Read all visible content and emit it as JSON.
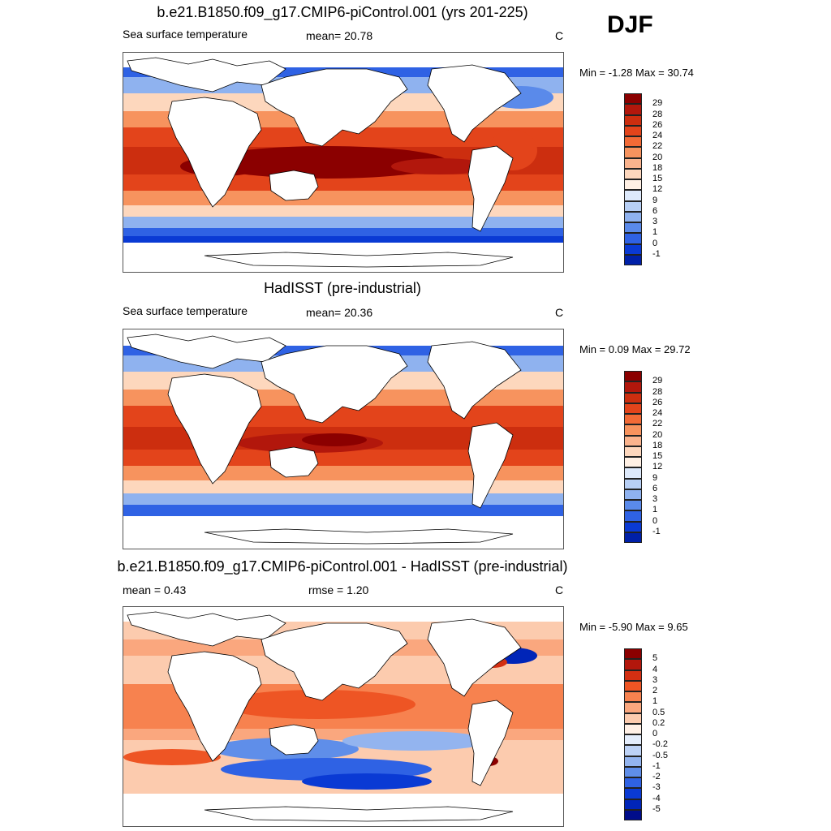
{
  "season": "DJF",
  "panels": [
    {
      "id": "model",
      "title": "b.e21.B1850.f09_g17.CMIP6-piControl.001 (yrs 201-225)",
      "left": "Sea surface temperature",
      "center": "mean=  20.78",
      "unit": "C",
      "minmax": "Min =  -1.28 Max =  30.74"
    },
    {
      "id": "obs",
      "title": "HadISST (pre-industrial)",
      "left": "Sea surface temperature",
      "center": "mean=  20.36",
      "unit": "C",
      "minmax": "Min =   0.09 Max =  29.72"
    },
    {
      "id": "diff",
      "title": "b.e21.B1850.f09_g17.CMIP6-piControl.001 - HadISST (pre-industrial)",
      "left": "mean =   0.43",
      "center": "rmse =   1.20",
      "unit": "C",
      "minmax": "Min =  -5.90 Max =   9.65"
    }
  ],
  "sst_colorbar": {
    "labels": [
      "29",
      "28",
      "26",
      "24",
      "22",
      "20",
      "18",
      "15",
      "12",
      "9",
      "6",
      "3",
      "1",
      "0",
      "-1"
    ],
    "colors": [
      "#8b0000",
      "#b2170c",
      "#cc2e0f",
      "#e3441b",
      "#f26a36",
      "#f7935e",
      "#fab38d",
      "#fdd7bd",
      "#fff0e4",
      "#dde9fb",
      "#b7cff5",
      "#8fb2ef",
      "#5a8aea",
      "#2f62e4",
      "#0a3ad4",
      "#0020a8"
    ]
  },
  "diff_colorbar": {
    "labels": [
      "5",
      "4",
      "3",
      "2",
      "1",
      "0.5",
      "0.2",
      "0",
      "-0.2",
      "-0.5",
      "-1",
      "-2",
      "-3",
      "-4",
      "-5"
    ],
    "colors": [
      "#8b0000",
      "#b2170c",
      "#d32f12",
      "#ee5524",
      "#f7824f",
      "#faa77e",
      "#fccbae",
      "#fff0e6",
      "#e4edfc",
      "#bdd2f6",
      "#93b4ef",
      "#5f8ee9",
      "#2f62e4",
      "#0a3ad4",
      "#0025b8",
      "#000d8a"
    ]
  }
}
